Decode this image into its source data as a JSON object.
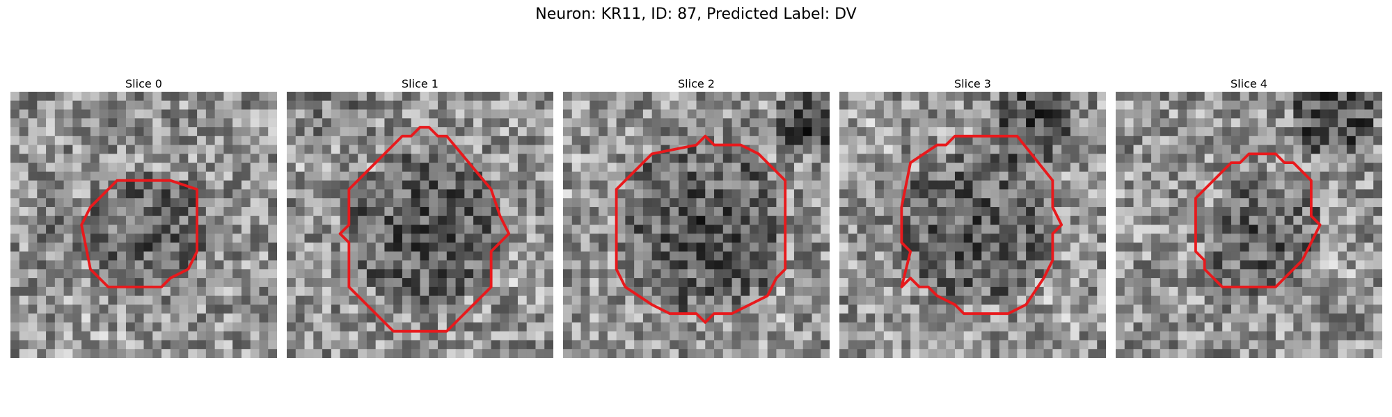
{
  "figure": {
    "title": "Neuron: KR11, ID: 87, Predicted Label: DV"
  },
  "colors": {
    "contour": "#e8191c",
    "background": "#ffffff"
  },
  "image_grid": 30,
  "panels": [
    {
      "title": "Slice 0",
      "seed": 11,
      "dark_regions": [
        [
          15,
          15,
          7,
          0.22
        ],
        [
          5,
          16,
          4,
          0.1
        ]
      ],
      "bright_regions": [
        [
          8,
          27,
          6,
          0.08
        ]
      ],
      "contour": [
        [
          9,
          13
        ],
        [
          12,
          10
        ],
        [
          18,
          10
        ],
        [
          21,
          11
        ],
        [
          21,
          18
        ],
        [
          20,
          20
        ],
        [
          18,
          21
        ],
        [
          17,
          22
        ],
        [
          11,
          22
        ],
        [
          9,
          20
        ],
        [
          8,
          15
        ]
      ]
    },
    {
      "title": "Slice 1",
      "seed": 23,
      "dark_regions": [
        [
          15,
          15,
          9,
          0.26
        ],
        [
          3,
          2,
          5,
          0.1
        ]
      ],
      "bright_regions": [
        [
          3,
          7,
          5,
          0.1
        ],
        [
          26,
          20,
          5,
          0.1
        ]
      ],
      "contour": [
        [
          8,
          10
        ],
        [
          13,
          5
        ],
        [
          14,
          5
        ],
        [
          15,
          4
        ],
        [
          16,
          4
        ],
        [
          17,
          5
        ],
        [
          18,
          5
        ],
        [
          23,
          11
        ],
        [
          24,
          14
        ],
        [
          25,
          16
        ],
        [
          23,
          18
        ],
        [
          23,
          22
        ],
        [
          18,
          27
        ],
        [
          12,
          27
        ],
        [
          7,
          22
        ],
        [
          7,
          17
        ],
        [
          6,
          16
        ],
        [
          7,
          15
        ],
        [
          7,
          11
        ]
      ]
    },
    {
      "title": "Slice 2",
      "seed": 37,
      "dark_regions": [
        [
          15,
          15,
          10,
          0.26
        ],
        [
          27,
          3,
          4,
          0.35
        ]
      ],
      "bright_regions": [
        [
          2,
          10,
          5,
          0.08
        ],
        [
          24,
          24,
          4,
          0.08
        ]
      ],
      "contour": [
        [
          6,
          11
        ],
        [
          10,
          7
        ],
        [
          15,
          6
        ],
        [
          16,
          5
        ],
        [
          17,
          6
        ],
        [
          20,
          6
        ],
        [
          22,
          7
        ],
        [
          25,
          10
        ],
        [
          25,
          20
        ],
        [
          24,
          21
        ],
        [
          23,
          23
        ],
        [
          19,
          25
        ],
        [
          17,
          25
        ],
        [
          16,
          26
        ],
        [
          15,
          25
        ],
        [
          12,
          25
        ],
        [
          10,
          24
        ],
        [
          7,
          22
        ],
        [
          6,
          20
        ]
      ]
    },
    {
      "title": "Slice 3",
      "seed": 51,
      "dark_regions": [
        [
          15,
          15,
          9,
          0.24
        ],
        [
          21,
          3,
          5,
          0.3
        ]
      ],
      "bright_regions": [
        [
          3,
          4,
          5,
          0.1
        ],
        [
          24,
          24,
          5,
          0.08
        ]
      ],
      "contour": [
        [
          8,
          8
        ],
        [
          11,
          6
        ],
        [
          12,
          6
        ],
        [
          13,
          5
        ],
        [
          20,
          5
        ],
        [
          24,
          10
        ],
        [
          24,
          13
        ],
        [
          25,
          15
        ],
        [
          24,
          16
        ],
        [
          24,
          19
        ],
        [
          23,
          21
        ],
        [
          21,
          24
        ],
        [
          19,
          25
        ],
        [
          14,
          25
        ],
        [
          13,
          24
        ],
        [
          11,
          23
        ],
        [
          10,
          22
        ],
        [
          9,
          22
        ],
        [
          8,
          21
        ],
        [
          7,
          22
        ],
        [
          8,
          18
        ],
        [
          7,
          17
        ],
        [
          7,
          13
        ]
      ]
    },
    {
      "title": "Slice 4",
      "seed": 67,
      "dark_regions": [
        [
          16,
          16,
          7,
          0.22
        ],
        [
          24,
          2,
          5,
          0.35
        ],
        [
          12,
          23,
          3,
          0.12
        ]
      ],
      "bright_regions": [
        [
          25,
          20,
          5,
          0.08
        ],
        [
          3,
          16,
          4,
          0.06
        ]
      ],
      "contour": [
        [
          9,
          12
        ],
        [
          13,
          8
        ],
        [
          14,
          8
        ],
        [
          15,
          7
        ],
        [
          18,
          7
        ],
        [
          19,
          8
        ],
        [
          20,
          8
        ],
        [
          22,
          10
        ],
        [
          22,
          14
        ],
        [
          23,
          15
        ],
        [
          22,
          17
        ],
        [
          21,
          19
        ],
        [
          19,
          21
        ],
        [
          18,
          22
        ],
        [
          12,
          22
        ],
        [
          10,
          20
        ],
        [
          10,
          19
        ],
        [
          9,
          18
        ]
      ]
    }
  ]
}
